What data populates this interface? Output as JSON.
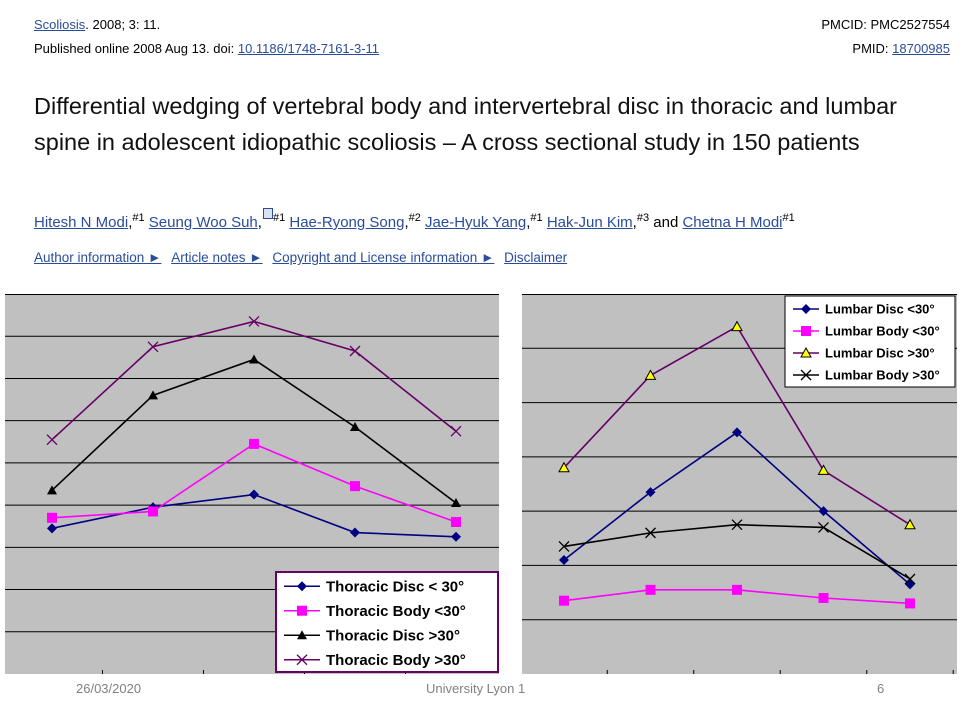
{
  "citation": {
    "journal": "Scoliosis",
    "issue": ". 2008; 3: 11.",
    "published_prefix": "Published online 2008 Aug 13. doi: ",
    "doi": "10.1186/1748-7161-3-11",
    "pmcid": "PMCID: PMC2527554",
    "pmid_label": "PMID: ",
    "pmid": "18700985"
  },
  "title": "Differential wedging of vertebral body and intervertebral disc in thoracic and lumbar spine in adolescent idiopathic scoliosis – A cross sectional study in 150 patients",
  "authors": [
    {
      "name": "Hitesh N Modi",
      "sup": "#1",
      "after": ","
    },
    {
      "name": "Seung Woo Suh",
      "sup": "#1",
      "after": ",",
      "has_badge": true
    },
    {
      "name": "Hae-Ryong Song",
      "sup": "#2",
      "after": ","
    },
    {
      "name": "Jae-Hyuk Yang",
      "sup": "#1",
      "after": ","
    },
    {
      "name": "Hak-Jun Kim",
      "sup": "#3",
      "after": ","
    },
    {
      "name": "Chetna H Modi",
      "sup": "#1",
      "after": ""
    }
  ],
  "authors_and": "and",
  "info_links": [
    "Author information ►",
    "Article notes ►",
    "Copyright and License information ►",
    "Disclaimer"
  ],
  "chart_data": [
    {
      "type": "line",
      "x": [
        1,
        2,
        3,
        4,
        5
      ],
      "ylim": [
        0,
        9
      ],
      "grid": true,
      "legend_position": "bottom-right",
      "series": [
        {
          "name": "Thoracic Disc < 30°",
          "color": "#000080",
          "marker": "diamond",
          "values": [
            3.45,
            3.95,
            4.25,
            3.35,
            3.25
          ]
        },
        {
          "name": "Thoracic Body <30°",
          "color": "#ff00ff",
          "marker": "square",
          "values": [
            3.7,
            3.85,
            5.45,
            4.45,
            3.6
          ]
        },
        {
          "name": "Thoracic Disc >30°",
          "color": "#000000",
          "marker": "triangle",
          "values": [
            4.35,
            6.6,
            7.45,
            5.85,
            4.05
          ]
        },
        {
          "name": "Thoracic Body >30°",
          "color": "#660066",
          "marker": "x",
          "values": [
            5.55,
            7.75,
            8.35,
            7.65,
            5.75
          ]
        }
      ]
    },
    {
      "type": "line",
      "x": [
        1,
        2,
        3,
        4,
        5
      ],
      "ylim": [
        0,
        7
      ],
      "grid": true,
      "legend_position": "top-right",
      "series": [
        {
          "name": "Lumbar Disc <30°",
          "color": "#000080",
          "marker": "diamond",
          "values": [
            2.1,
            3.35,
            4.45,
            3.0,
            1.65
          ]
        },
        {
          "name": "Lumbar Body <30°",
          "color": "#ff00ff",
          "marker": "square",
          "values": [
            1.35,
            1.55,
            1.55,
            1.4,
            1.3
          ]
        },
        {
          "name": "Lumbar Disc >30°",
          "color": "#660066",
          "marker": "triangle-open",
          "values": [
            3.8,
            5.5,
            6.4,
            3.75,
            2.75
          ]
        },
        {
          "name": "Lumbar Body >30°",
          "color": "#000000",
          "marker": "x",
          "values": [
            2.35,
            2.6,
            2.75,
            2.7,
            1.75
          ]
        }
      ]
    }
  ],
  "footer": {
    "date": "26/03/2020",
    "institution": "University Lyon 1",
    "page": "6"
  }
}
